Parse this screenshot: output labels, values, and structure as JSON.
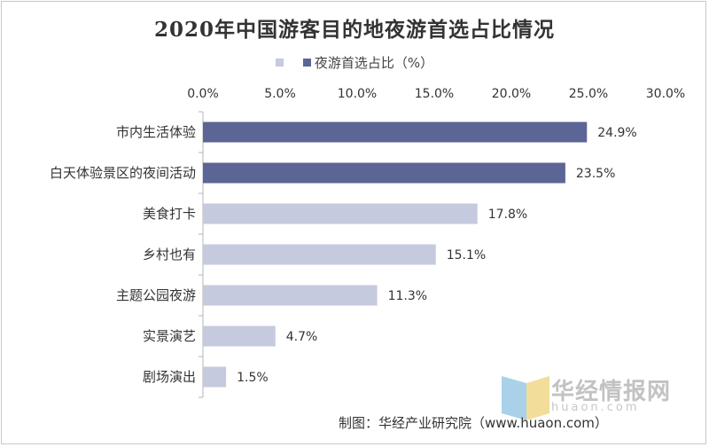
{
  "chart_data": {
    "type": "bar",
    "orientation": "horizontal",
    "title": "2020年中国游客目的地夜游首选占比情况",
    "legend_label": "夜游首选占比（%）",
    "x_ticks": [
      "0.0%",
      "5.0%",
      "10.0%",
      "15.0%",
      "20.0%",
      "25.0%",
      "30.0%"
    ],
    "xlim": [
      0,
      30
    ],
    "categories": [
      "市内生活体验",
      "白天体验景区的夜间活动",
      "美食打卡",
      "乡村也有",
      "主题公园夜游",
      "实景演艺",
      "剧场演出"
    ],
    "values": [
      24.9,
      23.5,
      17.8,
      15.1,
      11.3,
      4.7,
      1.5
    ],
    "value_labels": [
      "24.9%",
      "23.5%",
      "17.8%",
      "15.1%",
      "11.3%",
      "4.7%",
      "1.5%"
    ],
    "highlight_count": 2,
    "colors": {
      "highlight": "#5b6596",
      "normal": "#c5cade"
    },
    "grid": false,
    "legend_position": "top"
  },
  "watermark": {
    "name": "华经情报网",
    "url": "huaon.com"
  },
  "source": "制图：华经产业研究院（www.huaon.com）"
}
